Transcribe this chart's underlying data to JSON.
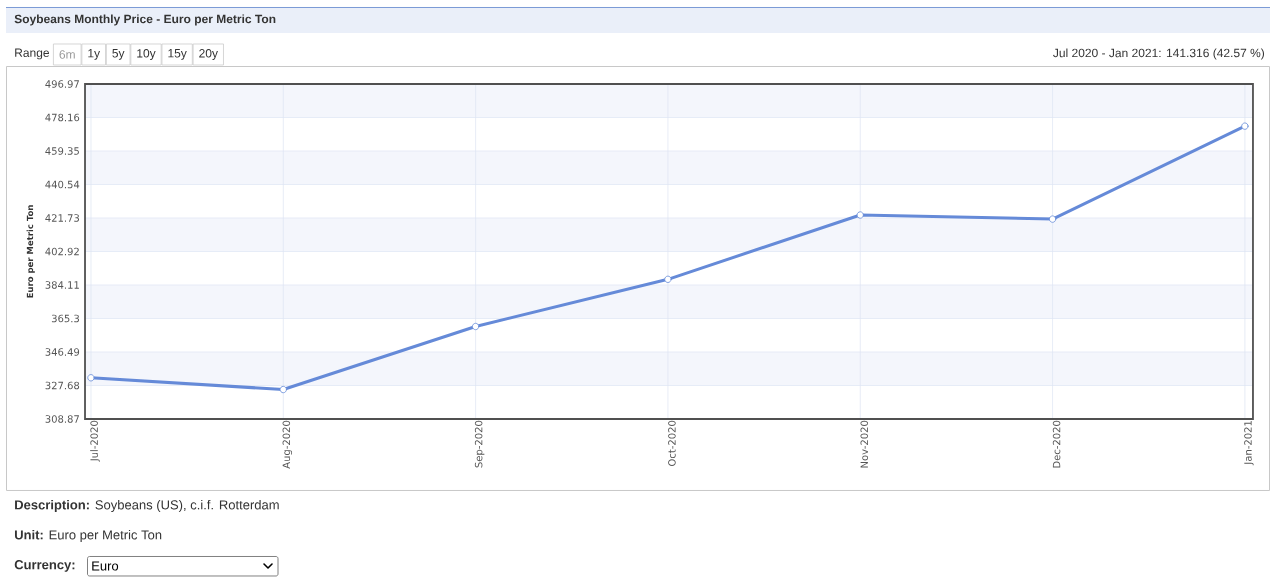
{
  "chart_data": {
    "type": "line",
    "title": "Soybeans Monthly Price - Euro per Metric Ton",
    "ylabel": "Euro per Metric Ton",
    "categories": [
      "Jul-2020",
      "Aug-2020",
      "Sep-2020",
      "Oct-2020",
      "Nov-2020",
      "Dec-2020",
      "Jan-2021"
    ],
    "series": [
      {
        "color": "#658ad8",
        "values": [
          332.0,
          325.4,
          360.8,
          387.3,
          423.4,
          421.1,
          473.3
        ]
      }
    ],
    "ylim": [
      308.87,
      496.97
    ],
    "yticks": [
      308.87,
      327.68,
      346.49,
      365.3,
      384.11,
      402.92,
      421.73,
      440.54,
      459.35,
      478.16,
      496.97
    ],
    "grid": true,
    "marker": "circle",
    "line_style": "solid",
    "annotations": [
      "Range",
      "6m",
      "1y",
      "5y",
      "10y",
      "15y",
      "20y",
      "Jul 2020 - Jan 2021: 141.316 (42.57 %)",
      "**Description:** Soybeans (US), c.i.f. Rotterdam",
      "**Unit:** Euro per Metric Ton",
      "Currency:",
      "Euro"
    ]
  }
}
